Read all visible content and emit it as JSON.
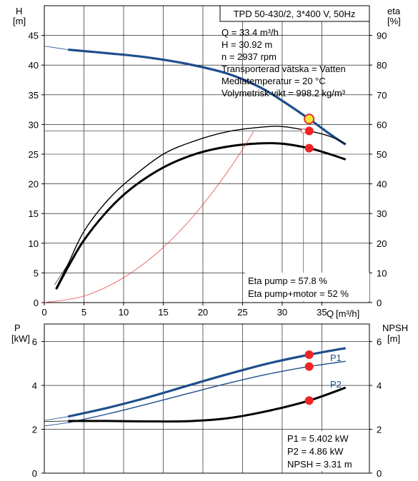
{
  "chart_data": [
    {
      "type": "line",
      "title": "TPD 50-430/2, 3*400 V, 50Hz",
      "xlabel": "Q",
      "xunit": "[m³/h]",
      "xlim": [
        0,
        41
      ],
      "xticks": [
        0,
        5,
        10,
        15,
        20,
        25,
        30,
        35
      ],
      "left_axis": {
        "label": "H",
        "unit": "[m]",
        "ylim": [
          0,
          50
        ],
        "ticks": [
          0,
          5,
          10,
          15,
          20,
          25,
          30,
          35,
          40,
          45
        ]
      },
      "right_axis": {
        "label": "eta",
        "unit": "[%]",
        "ylim": [
          0,
          100
        ],
        "ticks": [
          0,
          10,
          20,
          30,
          40,
          50,
          60,
          70,
          80,
          90
        ]
      },
      "info_lines": [
        "Q = 33.4 m³/h",
        "H = 30.92 m",
        "n = 2937 rpm",
        "Transporterad vätska = Vatten",
        "Mediatemperatur = 20 °C",
        "Volymetrisk vikt = 998.2 kg/m³"
      ],
      "eta_lines": [
        "Eta pump = 57.8 %",
        "Eta pump+motor = 52 %"
      ],
      "series": [
        {
          "key": "H",
          "axis": "left",
          "color": "#1f4e8c",
          "x": [
            0,
            3,
            8,
            13,
            18,
            23,
            27,
            30,
            33.4,
            36,
            38
          ],
          "y": [
            43.2,
            42.6,
            42.0,
            41.3,
            40.2,
            38.6,
            36.4,
            34.0,
            30.92,
            28.4,
            26.6
          ]
        },
        {
          "key": "H-ext",
          "axis": "left",
          "color": "#1f4e8c",
          "x": [
            0,
            3
          ],
          "y": [
            43.2,
            42.6
          ]
        },
        {
          "key": "eta-pump",
          "axis": "right",
          "color": "#000000",
          "x": [
            1.5,
            3,
            5,
            8,
            11,
            15,
            19,
            23,
            27,
            30,
            33.4,
            36,
            38
          ],
          "y": [
            5,
            13,
            24,
            34.5,
            42,
            50,
            54.5,
            57.5,
            59,
            59.3,
            57.8,
            56,
            53.5
          ]
        },
        {
          "key": "eta-total",
          "axis": "right",
          "color": "#000000",
          "x": [
            1.5,
            3,
            5,
            8,
            11,
            15,
            19,
            23,
            27,
            30,
            33.4,
            36,
            38
          ],
          "y": [
            4.5,
            12,
            21,
            31,
            38.5,
            45.5,
            50,
            52.5,
            53.6,
            53.5,
            52,
            50,
            48.2
          ]
        },
        {
          "key": "system-curve",
          "axis": "left",
          "color": "#e03030",
          "x": [
            0,
            5,
            10,
            15,
            20,
            25,
            30,
            33.4
          ],
          "y": [
            0,
            1.1,
            4.2,
            9.3,
            16.5,
            25.8,
            37.2,
            46.0
          ]
        }
      ],
      "markers": [
        {
          "axis": "left",
          "x": 33.4,
          "y": 30.92,
          "kind": "operating-point"
        },
        {
          "axis": "right",
          "x": 33.4,
          "y": 57.8,
          "kind": "red"
        },
        {
          "axis": "right",
          "x": 33.4,
          "y": 52,
          "kind": "red"
        }
      ],
      "guide": {
        "x": 33.4,
        "h": 30.92,
        "eta_point": 57.8
      }
    },
    {
      "type": "line",
      "xlim": [
        0,
        41
      ],
      "left_axis": {
        "label": "P",
        "unit": "[kW]",
        "ylim": [
          0,
          6.8
        ],
        "ticks": [
          0,
          2,
          4,
          6
        ]
      },
      "right_axis": {
        "label": "NPSH",
        "unit": "[m]",
        "ylim": [
          0,
          6.8
        ],
        "ticks": [
          0,
          2,
          4,
          6
        ]
      },
      "info_lines": [
        "P1 = 5.402 kW",
        "P2 = 4.86 kW",
        "NPSH = 3.31 m"
      ],
      "series": [
        {
          "key": "P1",
          "name": "P1",
          "color": "#1f4e8c",
          "x": [
            0,
            3,
            8,
            13,
            18,
            23,
            28,
            33.4,
            38
          ],
          "y": [
            2.4,
            2.58,
            2.98,
            3.45,
            3.98,
            4.5,
            4.98,
            5.402,
            5.7
          ]
        },
        {
          "key": "P2",
          "name": "P2",
          "color": "#1f4e8c",
          "x": [
            0,
            3,
            8,
            13,
            18,
            23,
            28,
            33.4,
            38
          ],
          "y": [
            2.15,
            2.3,
            2.7,
            3.15,
            3.62,
            4.08,
            4.5,
            4.86,
            5.1
          ]
        },
        {
          "key": "NPSH",
          "color": "#000000",
          "x": [
            0,
            3,
            8,
            13,
            18,
            23,
            28,
            33.4,
            38
          ],
          "y": [
            2.35,
            2.38,
            2.38,
            2.36,
            2.37,
            2.5,
            2.82,
            3.31,
            3.9
          ]
        }
      ],
      "markers": [
        {
          "x": 33.4,
          "y": 5.402,
          "kind": "red"
        },
        {
          "x": 33.4,
          "y": 4.86,
          "kind": "red"
        },
        {
          "x": 33.4,
          "y": 3.31,
          "kind": "red"
        }
      ]
    }
  ]
}
